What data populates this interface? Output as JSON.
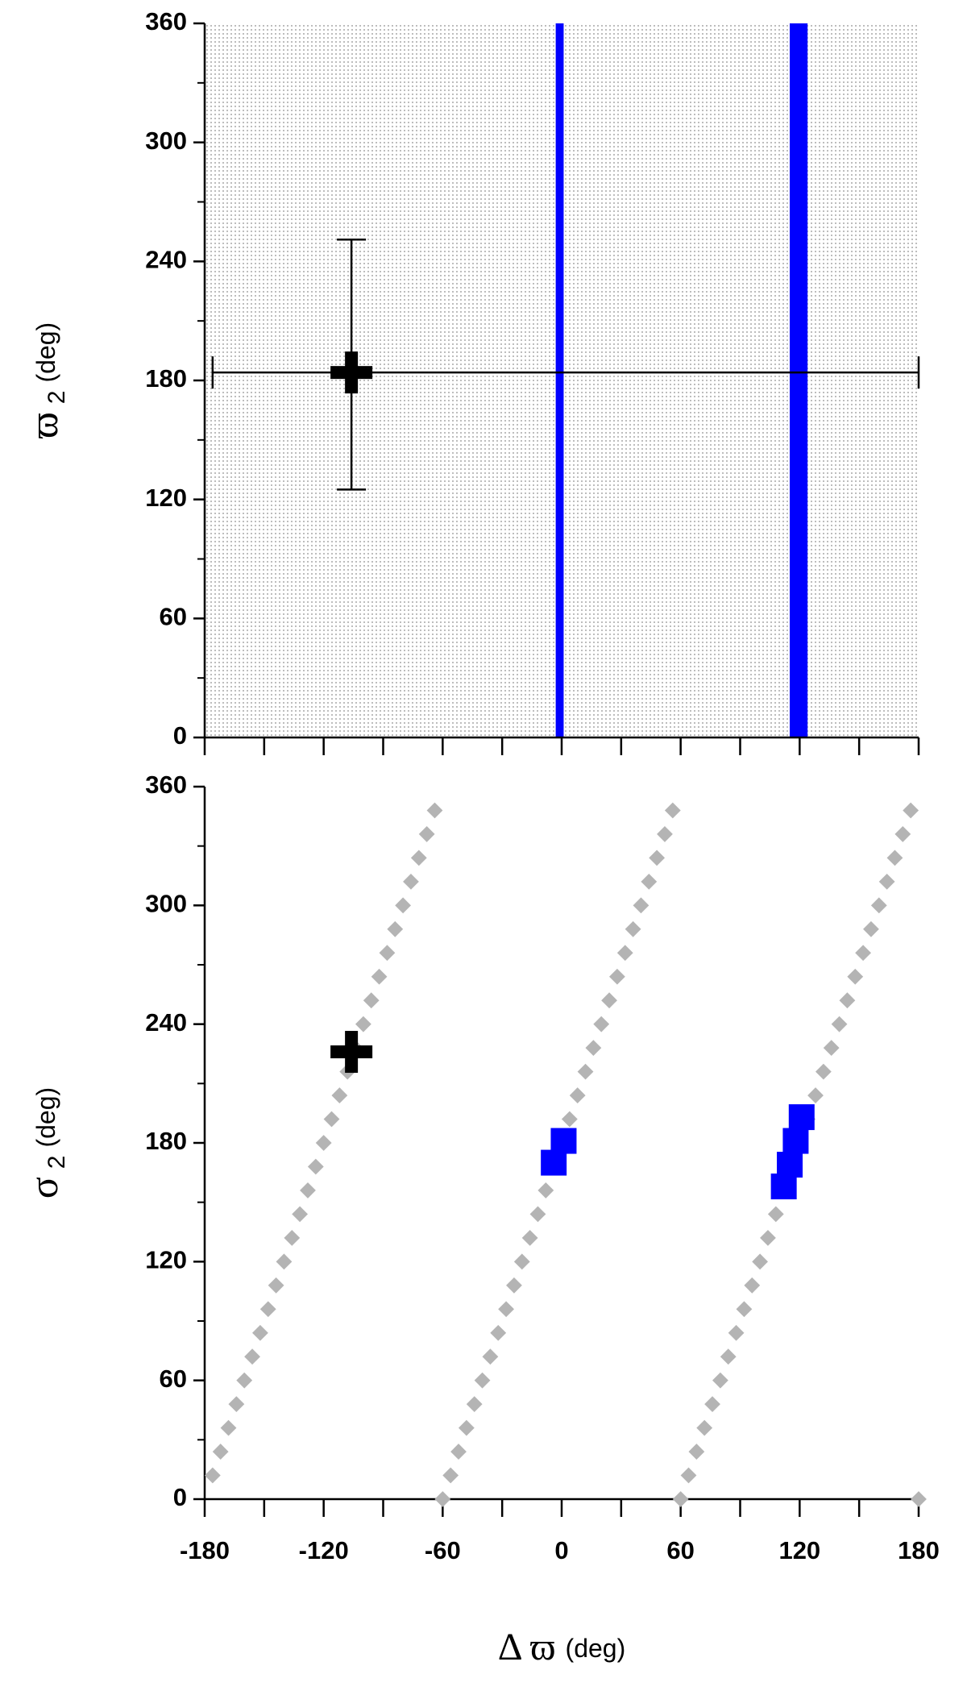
{
  "chart_data": [
    {
      "type": "scatter",
      "ylabel": {
        "symbol": "ϖ",
        "sub": "2",
        "unit": "(deg)"
      },
      "xlim": [
        -180,
        180
      ],
      "ylim": [
        0,
        360
      ],
      "yticks": [
        0,
        60,
        120,
        180,
        240,
        300,
        360
      ],
      "yminorticks": [
        30,
        90,
        150,
        210,
        270,
        330
      ],
      "xminorticks": [
        -180,
        -150,
        -120,
        -90,
        -60,
        -30,
        0,
        30,
        60,
        90,
        120,
        150,
        180
      ],
      "background": "dotted",
      "bands": {
        "color": "#0000ff",
        "ranges": [
          [
            -3,
            1
          ],
          [
            115,
            124
          ]
        ]
      },
      "point": {
        "x": -106,
        "y": 184,
        "x_range": [
          -176,
          180
        ],
        "y_range": [
          125,
          251
        ],
        "color": "#000000"
      }
    },
    {
      "type": "scatter",
      "ylabel": {
        "symbol": "σ",
        "sub": "2",
        "unit": "(deg)"
      },
      "xlabel": {
        "symbol": "Δ ϖ",
        "unit": "(deg)"
      },
      "xlim": [
        -180,
        180
      ],
      "ylim": [
        0,
        360
      ],
      "yticks": [
        0,
        60,
        120,
        180,
        240,
        300,
        360
      ],
      "yminorticks": [
        30,
        90,
        150,
        210,
        270,
        330
      ],
      "xticks": [
        -180,
        -120,
        -60,
        0,
        60,
        120,
        180
      ],
      "xminorticks": [
        -150,
        -90,
        -30,
        30,
        90,
        150
      ],
      "series": [
        {
          "color": "#b4b4b4",
          "marker": "diamond",
          "x": [
            -60,
            60,
            180,
            -176,
            -172,
            -168,
            -164,
            -160,
            -156,
            -152,
            -148,
            -144,
            -140,
            -136,
            -132,
            -128,
            -124,
            -120,
            -116,
            -112,
            -108,
            -104,
            -100,
            -96,
            -92,
            -88,
            -84,
            -80,
            -76,
            -72,
            -68,
            -64,
            -56,
            -52,
            -48,
            -44,
            -40,
            -36,
            -32,
            -28,
            -24,
            -20,
            -16,
            -12,
            -8,
            -4,
            0,
            4,
            8,
            12,
            16,
            20,
            24,
            28,
            32,
            36,
            40,
            44,
            48,
            52,
            56,
            64,
            68,
            72,
            76,
            80,
            84,
            88,
            92,
            96,
            100,
            104,
            108,
            112,
            116,
            120,
            124,
            128,
            132,
            136,
            140,
            144,
            148,
            152,
            156,
            160,
            164,
            168,
            172,
            176
          ],
          "y": [
            0,
            0,
            0,
            12,
            24,
            36,
            48,
            60,
            72,
            84,
            96,
            108,
            120,
            132,
            144,
            156,
            168,
            180,
            192,
            204,
            216,
            228,
            240,
            252,
            264,
            276,
            288,
            300,
            312,
            324,
            336,
            348,
            12,
            24,
            36,
            48,
            60,
            72,
            84,
            96,
            108,
            120,
            132,
            144,
            156,
            168,
            180,
            192,
            204,
            216,
            228,
            240,
            252,
            264,
            276,
            288,
            300,
            312,
            324,
            336,
            348,
            12,
            24,
            36,
            48,
            60,
            72,
            84,
            96,
            108,
            120,
            132,
            144,
            156,
            168,
            180,
            192,
            204,
            216,
            228,
            240,
            252,
            264,
            276,
            288,
            300,
            312,
            324,
            336,
            348
          ]
        },
        {
          "color": "#0000ff",
          "marker": "square",
          "x": [
            1,
            -4,
            121,
            118,
            115,
            112
          ],
          "y": [
            181,
            170,
            193,
            181,
            169,
            158
          ]
        },
        {
          "color": "#000000",
          "marker": "cross",
          "x": [
            -106
          ],
          "y": [
            226
          ]
        }
      ]
    }
  ]
}
